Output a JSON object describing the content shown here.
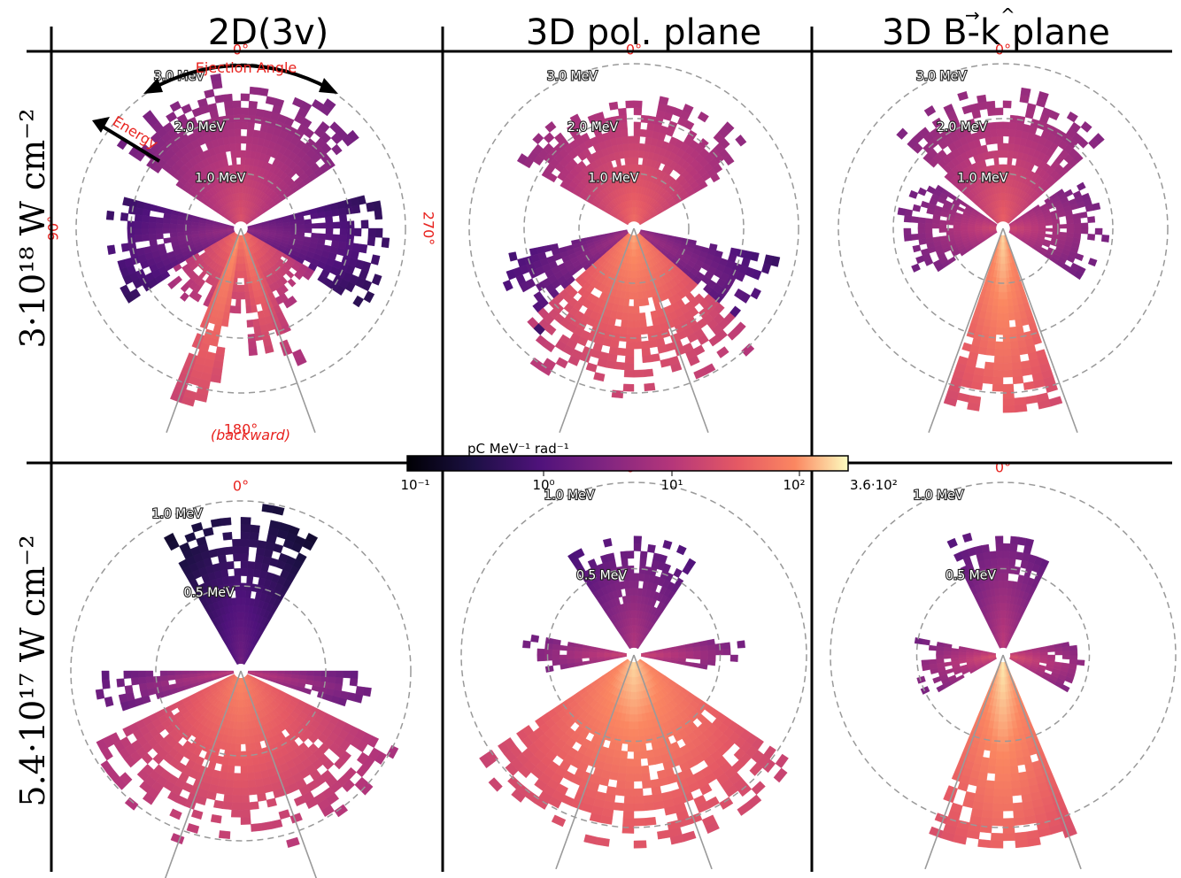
{
  "figure": {
    "column_titles": [
      "2D(3v)",
      "3D pol. plane",
      "3D B-k plane"
    ],
    "row_titles": [
      "3·10¹⁸ W cm⁻²",
      "5.4·10¹⁷ W cm⁻²"
    ],
    "colorbar": {
      "label": "pC MeV⁻¹ rad⁻¹",
      "ticks": [
        "10⁻¹",
        "10⁰",
        "10¹",
        "10²",
        "3.6·10²"
      ],
      "tick_values": [
        0.1,
        1,
        10,
        100,
        360
      ],
      "scale": "log",
      "range": [
        0.1,
        360
      ],
      "colormap": "magma"
    },
    "annotations": {
      "ejection_angle": "Ejection Angle",
      "energy": "Energy",
      "backward": "(backward)"
    }
  },
  "chart_data": [
    {
      "type": "heatmap",
      "row": 0,
      "col": 0,
      "coords": "polar",
      "rings": [
        {
          "value": 1.0,
          "label": "1.0 MeV"
        },
        {
          "value": 2.0,
          "label": "2.0 MeV"
        },
        {
          "value": 3.0,
          "label": "3.0 MeV"
        }
      ],
      "angle_labels": [
        "0°",
        "90°",
        "180°",
        "270°"
      ],
      "lobes": [
        {
          "angle_deg": 0,
          "width_deg": 110,
          "max_energy": 2.4,
          "peak": 40
        },
        {
          "angle_deg": 100,
          "width_deg": 50,
          "max_energy": 2.2,
          "peak": 8
        },
        {
          "angle_deg": 260,
          "width_deg": 50,
          "max_energy": 2.4,
          "peak": 6
        },
        {
          "angle_deg": 165,
          "width_deg": 18,
          "max_energy": 3.3,
          "peak": 200
        },
        {
          "angle_deg": 195,
          "width_deg": 20,
          "max_energy": 2.4,
          "peak": 150
        },
        {
          "angle_deg": 180,
          "width_deg": 120,
          "max_energy": 1.5,
          "peak": 120
        }
      ]
    },
    {
      "type": "heatmap",
      "row": 0,
      "col": 1,
      "coords": "polar",
      "rings": [
        {
          "value": 1.0,
          "label": "1.0 MeV"
        },
        {
          "value": 2.0,
          "label": "2.0 MeV"
        },
        {
          "value": 3.0,
          "label": "3.0 MeV"
        }
      ],
      "angle_labels": [
        "0°"
      ],
      "lobes": [
        {
          "angle_deg": 0,
          "width_deg": 120,
          "max_energy": 2.2,
          "peak": 80
        },
        {
          "angle_deg": 180,
          "width_deg": 100,
          "max_energy": 2.6,
          "peak": 200
        },
        {
          "angle_deg": 120,
          "width_deg": 40,
          "max_energy": 2.3,
          "peak": 10
        },
        {
          "angle_deg": 240,
          "width_deg": 40,
          "max_energy": 2.3,
          "peak": 10
        }
      ]
    },
    {
      "type": "heatmap",
      "row": 0,
      "col": 2,
      "coords": "polar",
      "rings": [
        {
          "value": 1.0,
          "label": "1.0 MeV"
        },
        {
          "value": 2.0,
          "label": "2.0 MeV"
        },
        {
          "value": 3.0,
          "label": "3.0 MeV"
        }
      ],
      "angle_labels": [
        "0°"
      ],
      "lobes": [
        {
          "angle_deg": 0,
          "width_deg": 100,
          "max_energy": 2.2,
          "peak": 60
        },
        {
          "angle_deg": 180,
          "width_deg": 40,
          "max_energy": 3.3,
          "peak": 300
        },
        {
          "angle_deg": 90,
          "width_deg": 70,
          "max_energy": 1.6,
          "peak": 30
        },
        {
          "angle_deg": 270,
          "width_deg": 70,
          "max_energy": 1.6,
          "peak": 30
        }
      ]
    },
    {
      "type": "heatmap",
      "row": 1,
      "col": 0,
      "coords": "polar",
      "rings": [
        {
          "value": 0.5,
          "label": "0.5 MeV"
        },
        {
          "value": 1.0,
          "label": "1.0 MeV"
        }
      ],
      "angle_labels": [
        "0°"
      ],
      "lobes": [
        {
          "angle_deg": 0,
          "width_deg": 60,
          "max_energy": 0.85,
          "peak": 3
        },
        {
          "angle_deg": 180,
          "width_deg": 130,
          "max_energy": 0.9,
          "peak": 150
        },
        {
          "angle_deg": 100,
          "width_deg": 20,
          "max_energy": 0.75,
          "peak": 20
        },
        {
          "angle_deg": 260,
          "width_deg": 20,
          "max_energy": 0.7,
          "peak": 20
        }
      ]
    },
    {
      "type": "heatmap",
      "row": 1,
      "col": 1,
      "coords": "polar",
      "rings": [
        {
          "value": 0.5,
          "label": "0.5 MeV"
        },
        {
          "value": 1.0,
          "label": "1.0 MeV"
        }
      ],
      "angle_labels": [
        "0°"
      ],
      "lobes": [
        {
          "angle_deg": 0,
          "width_deg": 70,
          "max_energy": 0.6,
          "peak": 15
        },
        {
          "angle_deg": 180,
          "width_deg": 110,
          "max_energy": 1.0,
          "peak": 300
        },
        {
          "angle_deg": 90,
          "width_deg": 25,
          "max_energy": 0.55,
          "peak": 30
        },
        {
          "angle_deg": 270,
          "width_deg": 25,
          "max_energy": 0.55,
          "peak": 30
        }
      ]
    },
    {
      "type": "heatmap",
      "row": 1,
      "col": 2,
      "coords": "polar",
      "rings": [
        {
          "value": 0.5,
          "label": "0.5 MeV"
        },
        {
          "value": 1.0,
          "label": "1.0 MeV"
        }
      ],
      "angle_labels": [
        "0°"
      ],
      "lobes": [
        {
          "angle_deg": 0,
          "width_deg": 50,
          "max_energy": 0.65,
          "peak": 20
        },
        {
          "angle_deg": 180,
          "width_deg": 45,
          "max_energy": 1.15,
          "peak": 350
        },
        {
          "angle_deg": 100,
          "width_deg": 40,
          "max_energy": 0.45,
          "peak": 40
        },
        {
          "angle_deg": 260,
          "width_deg": 40,
          "max_energy": 0.45,
          "peak": 40
        }
      ]
    }
  ]
}
